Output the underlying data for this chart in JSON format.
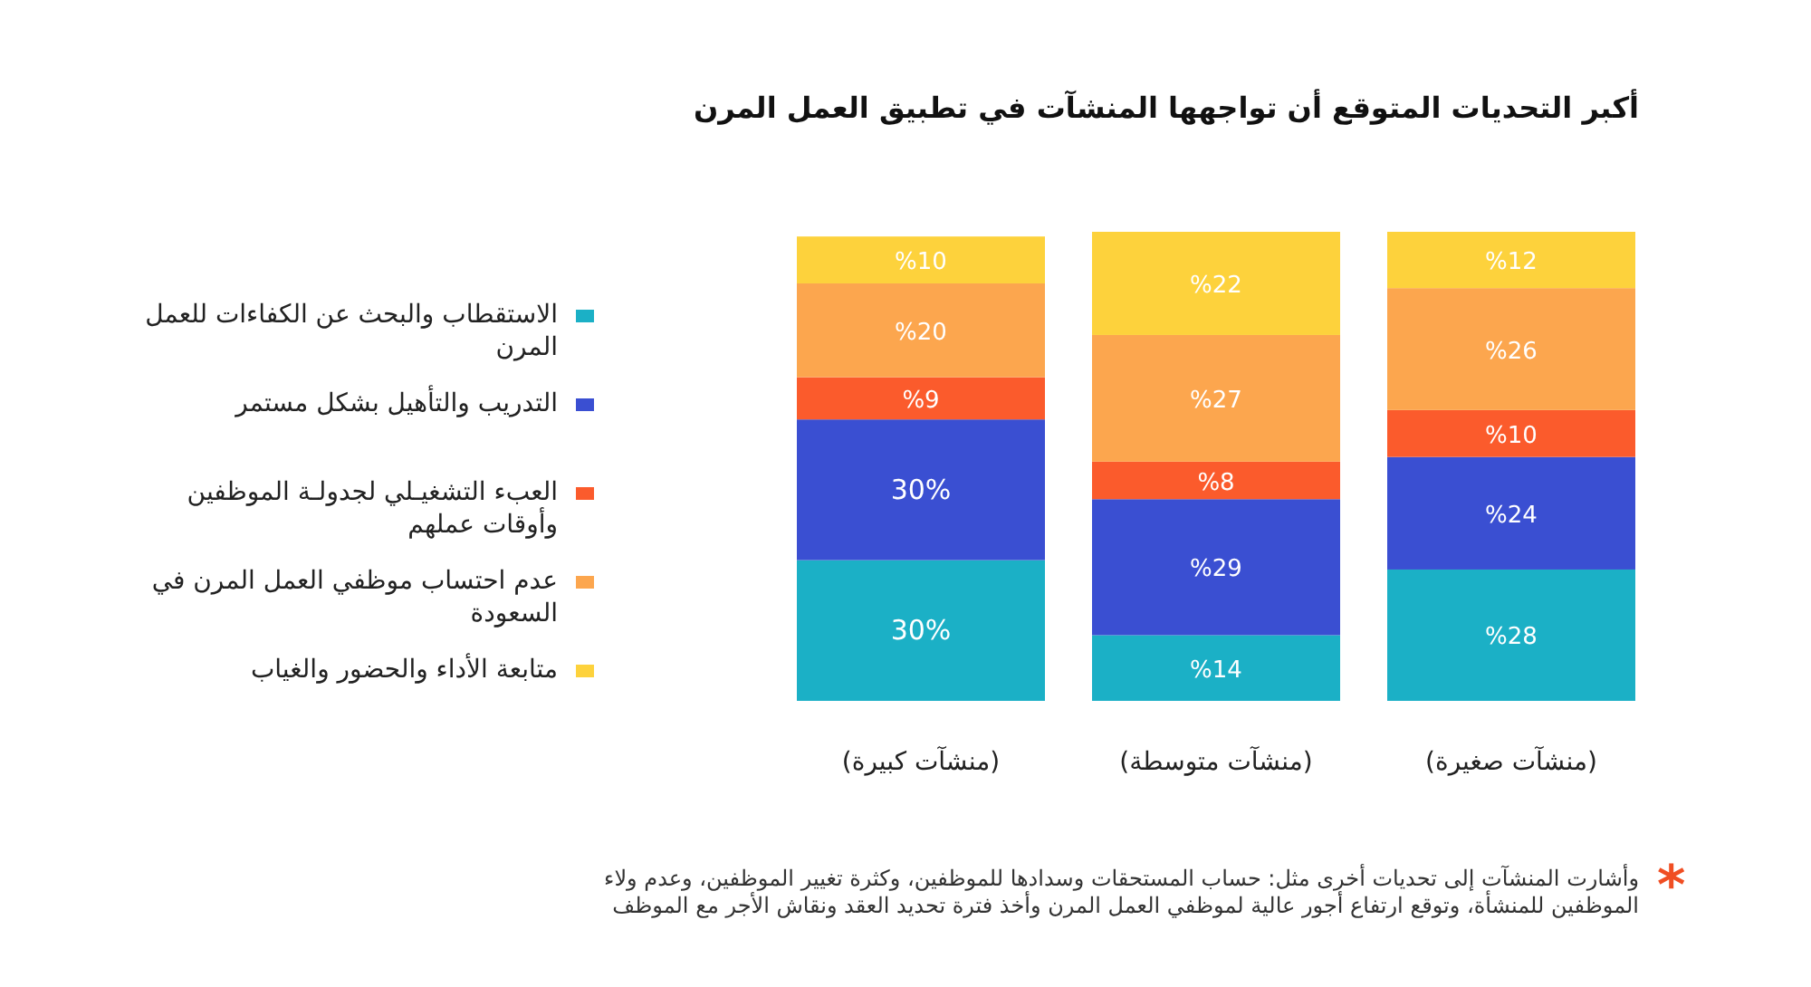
{
  "chart_data": {
    "type": "bar",
    "stacked": true,
    "title": "أكبر التحديات المتوقع أن تواجهها المنشآت في تطبيق العمل المرن",
    "categories": [
      "(منشآت كبيرة)",
      "(منشآت متوسطة)",
      "(منشآت صغيرة)"
    ],
    "series": [
      {
        "name": "الاستقطاب والبحث عن الكفاءات للعمل المرن",
        "color": "#1bb0c6",
        "values": [
          30,
          14,
          28
        ],
        "value_labels": [
          "30%",
          "%14",
          "%28"
        ]
      },
      {
        "name": "التدريب والتأهيل بشكل مستمر",
        "color": "#3a4fd2",
        "values": [
          30,
          29,
          24
        ],
        "value_labels": [
          "30%",
          "%29",
          "%24"
        ]
      },
      {
        "name": "العبء التشغيـلي لجدولـة الموظفين وأوقات عملهم",
        "color": "#fb5b2c",
        "values": [
          9,
          8,
          10
        ],
        "value_labels": [
          "%9",
          "%8",
          "%10"
        ]
      },
      {
        "name": "عدم احتساب موظفي العمل المرن في السعودة",
        "color": "#fca64e",
        "values": [
          20,
          27,
          26
        ],
        "value_labels": [
          "%20",
          "%27",
          "%26"
        ]
      },
      {
        "name": "متابعة الأداء والحضور والغياب",
        "color": "#fdd23c",
        "values": [
          10,
          22,
          12
        ],
        "value_labels": [
          "%10",
          "%22",
          "%12"
        ]
      }
    ],
    "legend": "left",
    "annotations": [
      "*",
      "وأشارت المنشآت إلى تحديات أخرى مثل: حساب المستحقات وسدادها للموظفين، وكثرة تغيير الموظفين، وعدم ولاء الموظفين للمنشأة، وتوقع ارتفاع أجور عالية لموظفي العمل المرن وأخذ فترة تحديد العقد ونقاش الأجر مع الموظف"
    ]
  }
}
